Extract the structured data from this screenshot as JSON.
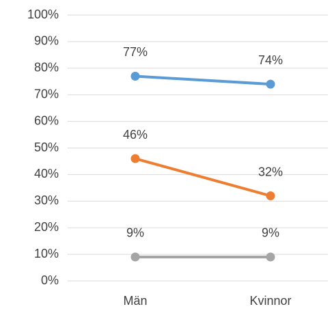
{
  "chart_data": {
    "type": "line",
    "categories": [
      "Män",
      "Kvinnor"
    ],
    "series": [
      {
        "color": "#5b9bd5",
        "values": [
          77,
          74
        ],
        "value_labels": [
          "77%",
          "74%"
        ]
      },
      {
        "color": "#ed7d31",
        "values": [
          46,
          32
        ],
        "value_labels": [
          "46%",
          "32%"
        ]
      },
      {
        "color": "#a5a5a5",
        "values": [
          9,
          9
        ],
        "value_labels": [
          "9%",
          "9%"
        ]
      }
    ],
    "ylim": [
      0,
      100
    ],
    "yticks": [
      {
        "value": 0,
        "label": "0%"
      },
      {
        "value": 10,
        "label": "10%"
      },
      {
        "value": 20,
        "label": "20%"
      },
      {
        "value": 30,
        "label": "30%"
      },
      {
        "value": 40,
        "label": "40%"
      },
      {
        "value": 50,
        "label": "50%"
      },
      {
        "value": 60,
        "label": "60%"
      },
      {
        "value": 70,
        "label": "70%"
      },
      {
        "value": 80,
        "label": "80%"
      },
      {
        "value": 90,
        "label": "90%"
      },
      {
        "value": 100,
        "label": "100%"
      }
    ],
    "grid": true
  }
}
